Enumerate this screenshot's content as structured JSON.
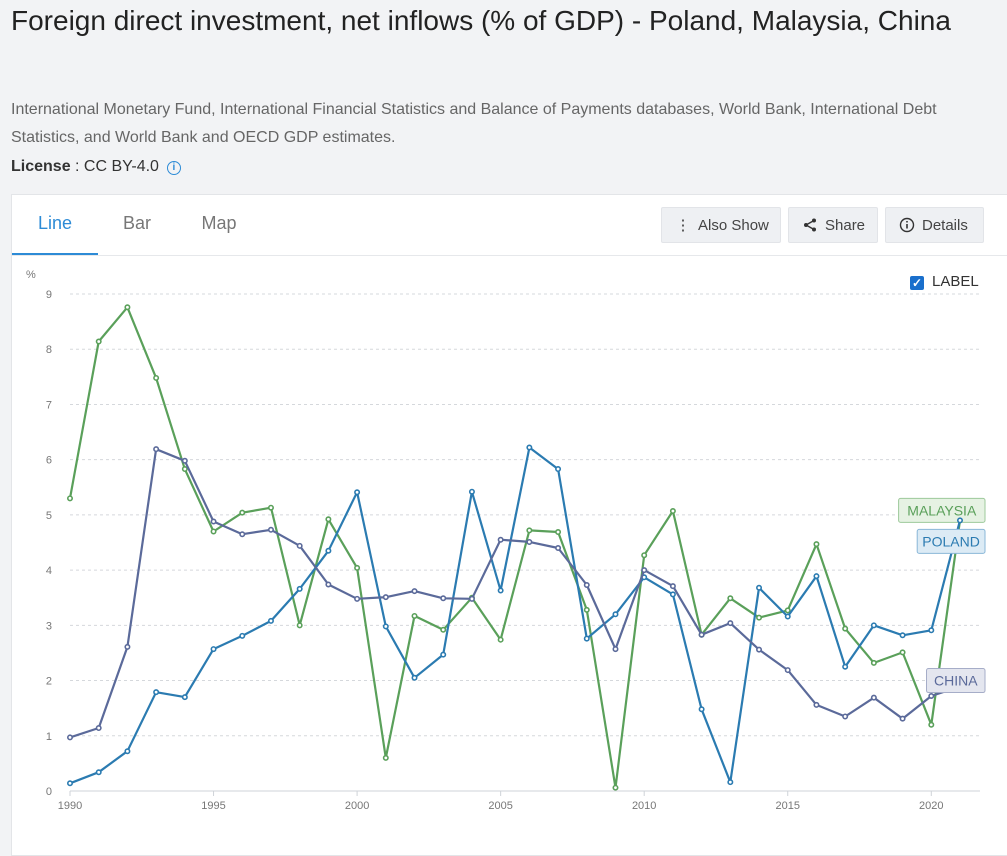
{
  "page": {
    "title": "Foreign direct investment, net inflows (% of GDP) - Poland, Malaysia, China",
    "source": "International Monetary Fund, International Financial Statistics and Balance of Payments databases, World Bank, International Debt Statistics, and World Bank and OECD GDP estimates.",
    "license_label": "License",
    "license_value": " : CC BY-4.0",
    "info_icon": "i"
  },
  "tabs": [
    {
      "label": "Line",
      "active": true
    },
    {
      "label": "Bar",
      "active": false
    },
    {
      "label": "Map",
      "active": false
    }
  ],
  "toolbar": {
    "also_show": "Also Show",
    "share": "Share",
    "details": "Details",
    "also_show_icon": "vertical-dots-icon",
    "share_icon": "share-icon",
    "details_icon": "info-icon"
  },
  "label_toggle": {
    "label": "LABEL",
    "checked": true
  },
  "chart_data": {
    "type": "line",
    "ylabel": "%",
    "ylim": [
      0,
      9
    ],
    "yticks": [
      0,
      1,
      2,
      3,
      4,
      5,
      6,
      7,
      8,
      9
    ],
    "xlim": [
      1990,
      2021
    ],
    "xticks": [
      1990,
      1995,
      2000,
      2005,
      2010,
      2015,
      2020
    ],
    "grid": true,
    "x": [
      1990,
      1991,
      1992,
      1993,
      1994,
      1995,
      1996,
      1997,
      1998,
      1999,
      2000,
      2001,
      2002,
      2003,
      2004,
      2005,
      2006,
      2007,
      2008,
      2009,
      2010,
      2011,
      2012,
      2013,
      2014,
      2015,
      2016,
      2017,
      2018,
      2019,
      2020,
      2021
    ],
    "series": [
      {
        "name": "MALAYSIA",
        "color": "#5aa05a",
        "tag_bg": "#e6f2e3",
        "tag_border": "#9dc99b",
        "values": [
          5.3,
          8.14,
          8.76,
          7.48,
          5.83,
          4.7,
          5.04,
          5.13,
          3.0,
          4.92,
          4.04,
          0.6,
          3.17,
          2.92,
          3.5,
          2.74,
          4.72,
          4.69,
          3.28,
          0.06,
          4.27,
          5.07,
          2.83,
          3.49,
          3.14,
          3.27,
          4.47,
          2.94,
          2.32,
          2.51,
          1.2,
          4.9
        ]
      },
      {
        "name": "POLAND",
        "color": "#2b7bb1",
        "tag_bg": "#dcebf5",
        "tag_border": "#8ab7d8",
        "values": [
          0.14,
          0.34,
          0.72,
          1.79,
          1.7,
          2.57,
          2.81,
          3.08,
          3.66,
          4.35,
          5.41,
          2.98,
          2.05,
          2.47,
          5.42,
          3.63,
          6.22,
          5.83,
          2.76,
          3.2,
          3.87,
          3.56,
          1.48,
          0.16,
          3.68,
          3.16,
          3.89,
          2.25,
          3.0,
          2.82,
          2.91,
          4.9
        ]
      },
      {
        "name": "CHINA",
        "color": "#5b6a9a",
        "tag_bg": "#e4e6ef",
        "tag_border": "#a6adc8",
        "values": [
          0.97,
          1.14,
          2.61,
          6.19,
          5.98,
          4.88,
          4.65,
          4.73,
          4.44,
          3.74,
          3.48,
          3.51,
          3.62,
          3.49,
          3.48,
          4.55,
          4.51,
          4.4,
          3.73,
          2.57,
          4.0,
          3.71,
          2.83,
          3.04,
          2.56,
          2.19,
          1.56,
          1.35,
          1.69,
          1.31,
          1.72,
          1.89
        ]
      }
    ]
  }
}
